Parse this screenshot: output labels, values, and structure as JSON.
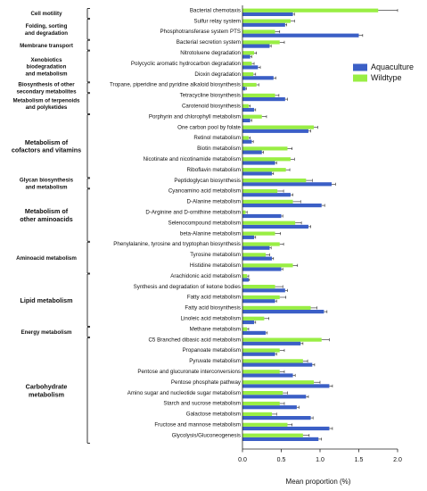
{
  "chart_data": {
    "type": "bar",
    "orientation": "horizontal",
    "xlabel": "Mean proportion (%)",
    "xlim": [
      0,
      2.0
    ],
    "xticks": [
      "0.0",
      "0.5",
      "1.0",
      "1.5",
      "2.0"
    ],
    "grid": false,
    "legend_position": "right",
    "categories": [
      "Bacterial chemotaxis",
      "Sulfur relay system",
      "Phosphotransferase system PTS",
      "Bacterial secretion system",
      "Nitrotoluene degradation",
      "Polycyclic aromatic hydrocarbon degradation",
      "Dioxin degradation",
      "Tropane, piperidine and pyridine alkaloid biosynthesis",
      "Tetracycline biosynthesis",
      "Carotenoid biosynthesis",
      "Porphyrin and chlorophyll metabolism",
      "One carbon pool by folate",
      "Retinol metabolism",
      "Biotin metabolism",
      "Nicotinate and nicotinamide metabolism",
      "Riboflavin metabolism",
      "Peptidoglycan biosynthesis",
      "Cyanoamino acid metabolism",
      "D-Alanine metabolism",
      "D-Arginine and D-ornithine metabolism",
      "Selenocompound metabolism",
      "beta-Alanine metabolism",
      "Phenylalanine, tyrosine and tryptophan biosynthesis",
      "Tyrosine metabolism",
      "Histidine metabolism",
      "Arachidonic acid metabolism",
      "Synthesis and degradation of ketone bodies",
      "Fatty acid metabolism",
      "Fatty acid biosynthesis",
      "Linoleic acid metabolism",
      "Methane metabolism",
      "C5 Branched dibasic acid metabolism",
      "Propanoate metabolism",
      "Pyruvate metabolism",
      "Pentose and glucuronate interconversions",
      "Pentose phosphate pathway",
      "Amino sugar and nucleotide sugar metabolism",
      "Starch and sucrose metabolism",
      "Galactose metabolism",
      "Fructose and mannose metabolism",
      "Glycolysis/Gluconeogenesis"
    ],
    "series": [
      {
        "name": "Aquaculture",
        "color": "#3b5fc6",
        "values": [
          0.65,
          0.55,
          1.5,
          0.35,
          0.1,
          0.2,
          0.4,
          0.04,
          0.55,
          0.15,
          0.1,
          0.85,
          0.12,
          0.25,
          0.42,
          0.38,
          1.15,
          0.62,
          1.02,
          0.5,
          0.85,
          0.15,
          0.35,
          0.38,
          0.5,
          0.08,
          0.55,
          0.42,
          1.05,
          0.15,
          0.3,
          0.75,
          0.42,
          0.9,
          0.65,
          1.12,
          0.82,
          0.7,
          0.88,
          1.12,
          0.98
        ],
        "errors": [
          0.02,
          0.02,
          0.05,
          0.02,
          0.02,
          0.03,
          0.03,
          0.01,
          0.03,
          0.02,
          0.02,
          0.03,
          0.02,
          0.02,
          0.02,
          0.02,
          0.05,
          0.03,
          0.04,
          0.02,
          0.03,
          0.02,
          0.02,
          0.02,
          0.02,
          0.01,
          0.03,
          0.02,
          0.04,
          0.02,
          0.02,
          0.03,
          0.02,
          0.03,
          0.03,
          0.04,
          0.03,
          0.03,
          0.03,
          0.04,
          0.04
        ]
      },
      {
        "name": "Wildtype",
        "color": "#99ee44",
        "values": [
          1.75,
          0.62,
          0.42,
          0.48,
          0.15,
          0.12,
          0.14,
          0.18,
          0.42,
          0.08,
          0.25,
          0.92,
          0.08,
          0.58,
          0.62,
          0.56,
          0.82,
          0.45,
          0.65,
          0.04,
          0.68,
          0.42,
          0.48,
          0.3,
          0.65,
          0.06,
          0.42,
          0.48,
          0.88,
          0.28,
          0.06,
          1.02,
          0.48,
          0.78,
          0.48,
          0.92,
          0.52,
          0.48,
          0.38,
          0.58,
          0.78
        ],
        "errors": [
          0.25,
          0.05,
          0.06,
          0.06,
          0.03,
          0.03,
          0.03,
          0.03,
          0.05,
          0.02,
          0.06,
          0.05,
          0.02,
          0.06,
          0.05,
          0.05,
          0.08,
          0.08,
          0.1,
          0.02,
          0.08,
          0.07,
          0.05,
          0.05,
          0.06,
          0.02,
          0.1,
          0.08,
          0.08,
          0.06,
          0.02,
          0.1,
          0.06,
          0.06,
          0.06,
          0.08,
          0.06,
          0.06,
          0.06,
          0.06,
          0.08
        ]
      }
    ],
    "groups": [
      {
        "label": [
          "Cell  motility"
        ],
        "first": 0,
        "last": 0
      },
      {
        "label": [
          "Folding, sorting",
          "and degradation"
        ],
        "first": 1,
        "last": 2
      },
      {
        "label": [
          "Membrane transport"
        ],
        "first": 3,
        "last": 3
      },
      {
        "label": [
          "Xenobiotics",
          "biodegradation",
          "and metabolism"
        ],
        "first": 4,
        "last": 6
      },
      {
        "label": [
          "Biosynthesis of other",
          "secondary metabolites"
        ],
        "first": 7,
        "last": 7
      },
      {
        "label": [
          "Metabolism of terpenoids",
          "and polyketides"
        ],
        "first": 8,
        "last": 9
      },
      {
        "label": [
          "Metabolism of",
          "cofactors and vitamins"
        ],
        "first": 10,
        "last": 15
      },
      {
        "label": [
          "Glycan biosynthesis",
          "and metabolism"
        ],
        "first": 16,
        "last": 16
      },
      {
        "label": [
          "Metabolism of",
          "other aminoacids"
        ],
        "first": 17,
        "last": 21
      },
      {
        "label": [
          "Aminoacid metabolism"
        ],
        "first": 22,
        "last": 24
      },
      {
        "label": [
          "Lipid metabolism"
        ],
        "first": 25,
        "last": 29
      },
      {
        "label": [
          "Energy  metabolism"
        ],
        "first": 30,
        "last": 30
      },
      {
        "label": [
          "Carbohydrate",
          "metabolism"
        ],
        "first": 31,
        "last": 40
      }
    ]
  }
}
